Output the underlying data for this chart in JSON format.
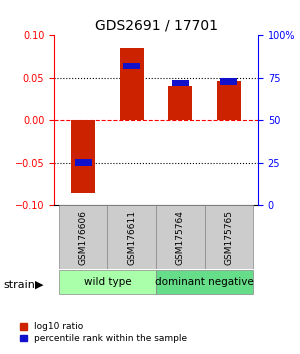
{
  "title": "GDS2691 / 17701",
  "samples": [
    "GSM176606",
    "GSM176611",
    "GSM175764",
    "GSM175765"
  ],
  "log10_ratio": [
    -0.085,
    0.085,
    0.04,
    0.046
  ],
  "percentile_rank": [
    25,
    82,
    72,
    73
  ],
  "ylim_left": [
    -0.1,
    0.1
  ],
  "ylim_right": [
    0,
    100
  ],
  "yticks_left": [
    -0.1,
    -0.05,
    0,
    0.05,
    0.1
  ],
  "yticks_right": [
    0,
    25,
    50,
    75,
    100
  ],
  "ytick_labels_right": [
    "0",
    "25",
    "50",
    "75",
    "100%"
  ],
  "hlines": [
    -0.05,
    0,
    0.05
  ],
  "hline_colors": [
    "black",
    "red",
    "black"
  ],
  "hline_styles": [
    "dotted",
    "dashed",
    "dotted"
  ],
  "bar_color_red": "#cc2200",
  "bar_color_blue": "#1111cc",
  "bar_width": 0.5,
  "groups": [
    {
      "label": "wild type",
      "samples": [
        0,
        1
      ],
      "color": "#aaffaa"
    },
    {
      "label": "dominant negative",
      "samples": [
        2,
        3
      ],
      "color": "#66dd88"
    }
  ],
  "strain_label": "strain",
  "legend_red_label": "log10 ratio",
  "legend_blue_label": "percentile rank within the sample",
  "bg_color": "#ffffff",
  "plot_bg_color": "#ffffff",
  "label_area_color": "#cccccc",
  "grid_color": "#888888"
}
